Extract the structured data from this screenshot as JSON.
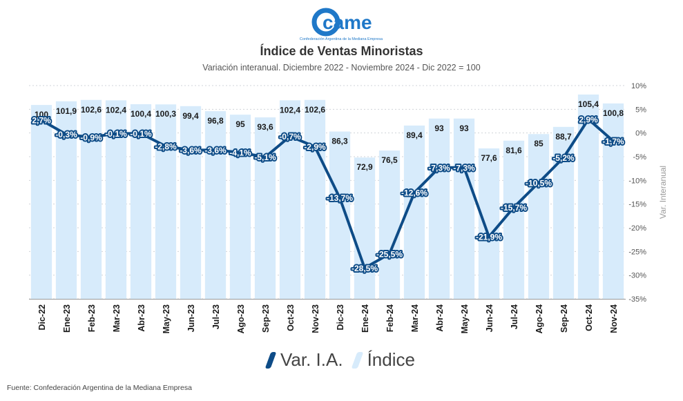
{
  "logo": {
    "brand": "came",
    "tagline": "Confederación Argentina de la Mediana Empresa"
  },
  "source": "Fuente: Confederación Argentina de la Mediana Empresa",
  "legend": {
    "line_label": "Var. I.A.",
    "bar_label": "Índice"
  },
  "colors": {
    "bar": "#d7ebfb",
    "line": "#0e4c87",
    "grid": "#cfd3d8",
    "brand": "#1f78c8"
  },
  "chart_data": {
    "type": "bar",
    "title": "Índice de Ventas Minoristas",
    "subtitle": "Variación interanual. Diciembre 2022 - Noviembre 2024 - Dic 2022 = 100",
    "categories": [
      "Dic-22",
      "Ene-23",
      "Feb-23",
      "Mar-23",
      "Abr-23",
      "May-23",
      "Jun-23",
      "Jul-23",
      "Ago-23",
      "Sep-23",
      "Oct-23",
      "Nov-23",
      "Dic-23",
      "Ene-24",
      "Feb-24",
      "Mar-24",
      "Abr-24",
      "May-24",
      "Jun-24",
      "Jul-24",
      "Ago-24",
      "Sep-24",
      "Oct-24",
      "Nov-24"
    ],
    "series": [
      {
        "name": "Índice",
        "type": "bar",
        "axis": "left",
        "values": [
          100,
          101.9,
          102.6,
          102.4,
          100.4,
          100.3,
          99.4,
          96.8,
          95,
          93.6,
          102.4,
          102.6,
          86.3,
          72.9,
          76.5,
          89.4,
          93,
          93,
          77.6,
          81.6,
          85,
          88.7,
          105.4,
          100.8
        ],
        "labels": [
          "100",
          "101,9",
          "102,6",
          "102,4",
          "100,4",
          "100,3",
          "99,4",
          "96,8",
          "95",
          "93,6",
          "102,4",
          "102,6",
          "86,3",
          "72,9",
          "76,5",
          "89,4",
          "93",
          "93",
          "77,6",
          "81,6",
          "85",
          "88,7",
          "105,4",
          "100,8"
        ]
      },
      {
        "name": "Var. I.A.",
        "type": "line",
        "axis": "right",
        "values": [
          2.7,
          -0.3,
          -0.9,
          -0.1,
          -0.1,
          -2.8,
          -3.6,
          -3.6,
          -4.1,
          -5.1,
          -0.7,
          -2.9,
          -13.7,
          -28.5,
          -25.5,
          -12.6,
          -7.3,
          -7.3,
          -21.9,
          -15.7,
          -10.5,
          -5.2,
          2.9,
          -1.7
        ],
        "labels": [
          "2,7%",
          "-0,3%",
          "-0,9%",
          "-0,1%",
          "-0,1%",
          "-2,8%",
          "-3,6%",
          "-3,6%",
          "-4,1%",
          "-5,1%",
          "-0,7%",
          "-2,9%",
          "-13,7%",
          "-28,5%",
          "-25,5%",
          "-12,6%",
          "-7,3%",
          "-7,3%",
          "-21,9%",
          "-15,7%",
          "-10,5%",
          "-5,2%",
          "2,9%",
          "-1,7%"
        ]
      }
    ],
    "y_right": {
      "label": "Var. Interanual",
      "range": [
        -35,
        10
      ],
      "ticks": [
        10,
        5,
        0,
        -5,
        -10,
        -15,
        -20,
        -25,
        -30,
        -35
      ],
      "tick_labels": [
        "10%",
        "5%",
        "0%",
        "-5%",
        "-10%",
        "-15%",
        "-20%",
        "-25%",
        "-30%",
        "-35%"
      ]
    },
    "y_left": {
      "range": [
        0,
        110
      ],
      "visible": false
    },
    "grid": true,
    "legend_position": "bottom"
  }
}
